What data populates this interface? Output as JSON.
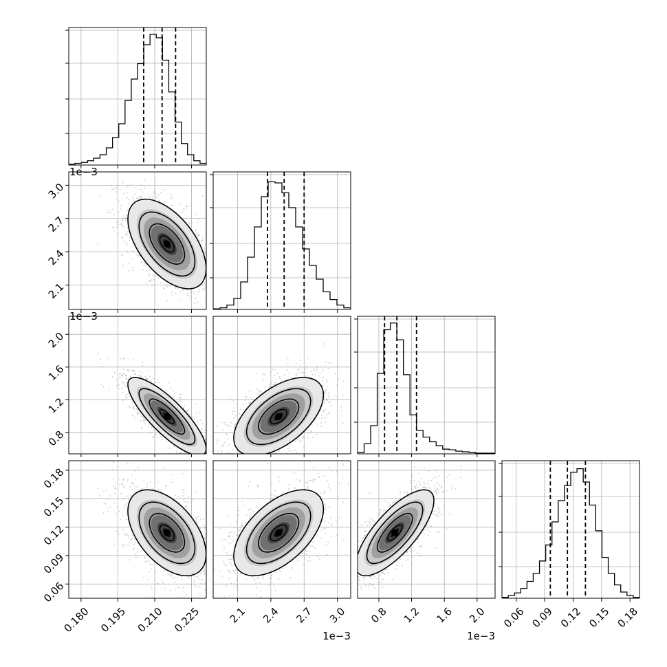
{
  "chart_data": {
    "type": "corner",
    "n_params": 4,
    "grid": true,
    "params": [
      {
        "range": [
          0.175,
          0.231
        ],
        "ticks": [
          0.18,
          0.195,
          0.21,
          0.225
        ],
        "tick_labels": [
          "0.180",
          "0.195",
          "0.210",
          "0.225"
        ],
        "offset_label": "",
        "quantiles": [
          0.2055,
          0.213,
          0.2185
        ],
        "hist": [
          1,
          2,
          3,
          5,
          8,
          12,
          20,
          32,
          48,
          75,
          100,
          118,
          140,
          152,
          148,
          122,
          85,
          50,
          25,
          12,
          5,
          2
        ],
        "hist_ymax": 160,
        "mode": 0.215
      },
      {
        "range": [
          1.88,
          3.12
        ],
        "ticks": [
          2.1,
          2.4,
          2.7,
          3.0
        ],
        "tick_labels": [
          "2.1",
          "2.4",
          "2.7",
          "3.0"
        ],
        "offset_label": "1e−3",
        "quantiles": [
          2.37,
          2.52,
          2.7
        ],
        "hist": [
          1,
          3,
          8,
          20,
          50,
          95,
          150,
          205,
          232,
          230,
          212,
          185,
          150,
          110,
          80,
          55,
          32,
          18,
          8,
          3
        ],
        "hist_ymax": 250,
        "mode": 2.47
      },
      {
        "range": [
          0.54,
          2.22
        ],
        "ticks": [
          0.8,
          1.2,
          1.6,
          2.0
        ],
        "tick_labels": [
          "0.8",
          "1.2",
          "1.6",
          "2.0"
        ],
        "offset_label": "1e−3",
        "quantiles": [
          0.87,
          1.02,
          1.26
        ],
        "hist": [
          2,
          15,
          42,
          120,
          185,
          195,
          170,
          118,
          58,
          35,
          25,
          18,
          12,
          7,
          6,
          4,
          3,
          2,
          1,
          1,
          1
        ],
        "hist_ymax": 205,
        "mode": 0.995
      },
      {
        "range": [
          0.045,
          0.19
        ],
        "ticks": [
          0.06,
          0.09,
          0.12,
          0.15,
          0.18
        ],
        "tick_labels": [
          "0.06",
          "0.09",
          "0.12",
          "0.15",
          "0.18"
        ],
        "offset_label": "",
        "quantiles": [
          0.096,
          0.114,
          0.133
        ],
        "hist": [
          1,
          3,
          6,
          11,
          19,
          28,
          42,
          60,
          86,
          110,
          127,
          142,
          146,
          131,
          105,
          76,
          46,
          28,
          15,
          7,
          3,
          1
        ],
        "hist_ymax": 155,
        "mode": 0.114
      }
    ],
    "correlations": [
      [
        1.0,
        -0.55,
        -0.82,
        -0.5
      ],
      [
        -0.55,
        1.0,
        0.55,
        0.55
      ],
      [
        -0.82,
        0.55,
        1.0,
        0.75
      ],
      [
        -0.5,
        0.55,
        0.75,
        1.0
      ]
    ],
    "hist_color": "#000000",
    "quantile_line_color": "#000000",
    "scatter_color": "#808080",
    "grid_color": "#b0b0b0"
  }
}
